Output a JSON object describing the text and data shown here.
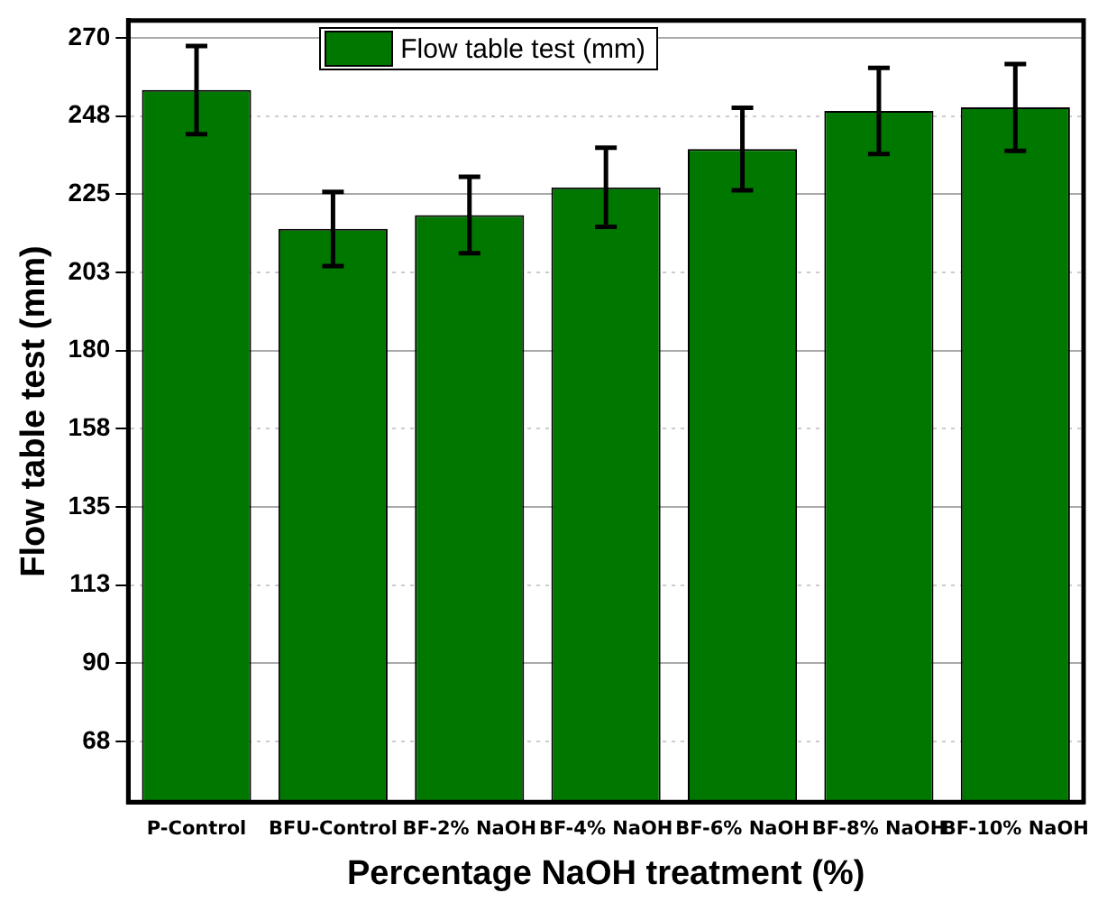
{
  "chart_data": {
    "type": "bar",
    "xlabel": "Percentage NaOH treatment (%)",
    "ylabel": "Flow table test (mm)",
    "categories": [
      "P-Control",
      "BFU-Control",
      "BF-2% NaOH",
      "BF-4% NaOH",
      "BF-6% NaOH",
      "BF-8% NaOH",
      "BF-10% NaOH"
    ],
    "series": [
      {
        "name": "Flow table test (mm)",
        "color": "#007800",
        "values": [
          255,
          215,
          219,
          227,
          238,
          249,
          250
        ],
        "errors": [
          12.7,
          10.7,
          11,
          11.4,
          11.9,
          12.4,
          12.5
        ]
      }
    ],
    "ylim": [
      50,
      275
    ],
    "yticks": [
      {
        "value": 67.5,
        "label": "68"
      },
      90,
      {
        "value": 112.5,
        "label": "113"
      },
      135,
      {
        "value": 157.5,
        "label": "158"
      },
      180,
      {
        "value": 202.5,
        "label": "203"
      },
      225,
      {
        "value": 247.5,
        "label": "248"
      },
      270
    ],
    "grid": "y",
    "legend": "top left"
  }
}
